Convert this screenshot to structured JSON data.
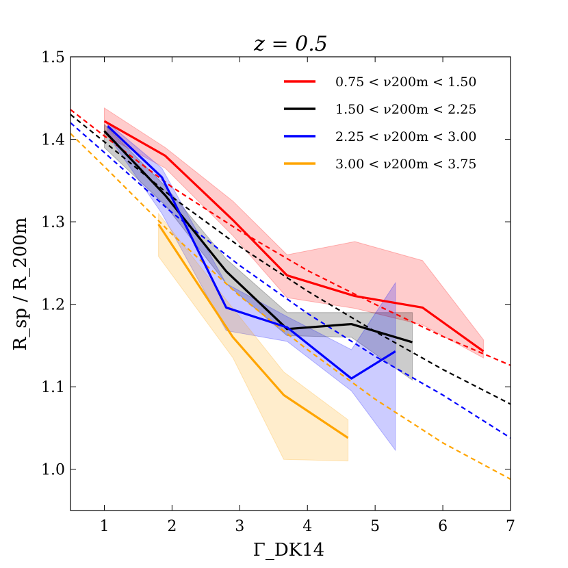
{
  "chart_data": {
    "type": "line",
    "title": "z = 0.5",
    "xlabel": "Γ_DK14",
    "ylabel": "R_sp / R_200m",
    "xlim": [
      0.5,
      7
    ],
    "ylim": [
      0.95,
      1.5
    ],
    "xticks": [
      1,
      2,
      3,
      4,
      5,
      6,
      7
    ],
    "yticks": [
      1.0,
      1.1,
      1.2,
      1.3,
      1.4,
      1.5
    ],
    "xtick_labels": [
      "1",
      "2",
      "3",
      "4",
      "5",
      "6",
      "7"
    ],
    "ytick_labels": [
      "1.0",
      "1.1",
      "1.2",
      "1.3",
      "1.4",
      "1.5"
    ],
    "legend_position": "top-right",
    "series": [
      {
        "name": "0.75 < ν_200m < 1.50",
        "legend_label": "0.75 < ν200m < 1.50",
        "color": "#ff0000",
        "x": [
          1.0,
          1.9,
          2.9,
          3.7,
          4.7,
          5.7,
          6.6
        ],
        "y": [
          1.422,
          1.38,
          1.302,
          1.235,
          1.21,
          1.196,
          1.143
        ],
        "band_upper": [
          1.438,
          1.39,
          1.325,
          1.26,
          1.276,
          1.253,
          1.157
        ],
        "band_lower": [
          1.405,
          1.365,
          1.283,
          1.208,
          1.195,
          1.175,
          1.135
        ],
        "model_x": [
          0.5,
          1,
          2,
          3,
          4,
          5,
          6,
          7
        ],
        "model_y": [
          1.436,
          1.404,
          1.342,
          1.289,
          1.241,
          1.2,
          1.161,
          1.126
        ]
      },
      {
        "name": "1.50 < ν_200m < 2.25",
        "legend_label": "1.50 < ν200m < 2.25",
        "color": "#000000",
        "x": [
          1.0,
          1.9,
          2.8,
          3.7,
          4.65,
          5.55
        ],
        "y": [
          1.41,
          1.332,
          1.24,
          1.17,
          1.176,
          1.154
        ],
        "band_upper": [
          1.418,
          1.343,
          1.255,
          1.19,
          1.19,
          1.19
        ],
        "band_lower": [
          1.39,
          1.32,
          1.225,
          1.162,
          1.16,
          1.108
        ],
        "model_x": [
          0.5,
          1,
          2,
          3,
          4,
          5,
          6,
          7
        ],
        "model_y": [
          1.43,
          1.397,
          1.33,
          1.27,
          1.216,
          1.167,
          1.121,
          1.079
        ]
      },
      {
        "name": "2.25 < ν_200m < 3.00",
        "legend_label": "2.25 < ν200m < 3.00",
        "color": "#0000ff",
        "x": [
          1.05,
          1.85,
          2.8,
          3.7,
          4.65,
          5.3
        ],
        "y": [
          1.416,
          1.354,
          1.196,
          1.172,
          1.11,
          1.143
        ],
        "band_upper": [
          1.42,
          1.365,
          1.225,
          1.185,
          1.145,
          1.226
        ],
        "band_lower": [
          1.405,
          1.31,
          1.168,
          1.155,
          1.095,
          1.023
        ],
        "model_x": [
          0.5,
          1,
          2,
          3,
          4,
          5,
          6,
          7
        ],
        "model_y": [
          1.42,
          1.384,
          1.311,
          1.247,
          1.189,
          1.137,
          1.09,
          1.038
        ]
      },
      {
        "name": "3.00 < ν_200m < 3.75",
        "legend_label": "3.00 < ν200m < 3.75",
        "color": "#ffa500",
        "x": [
          1.8,
          2.9,
          3.65,
          4.6
        ],
        "y": [
          1.297,
          1.16,
          1.09,
          1.038
        ],
        "band_upper": [
          1.31,
          1.195,
          1.118,
          1.06
        ],
        "band_lower": [
          1.258,
          1.135,
          1.012,
          1.01
        ],
        "model_x": [
          0.5,
          1,
          2,
          3,
          4,
          5,
          6,
          7
        ],
        "model_y": [
          1.407,
          1.367,
          1.285,
          1.21,
          1.145,
          1.085,
          1.032,
          0.988
        ]
      }
    ]
  }
}
